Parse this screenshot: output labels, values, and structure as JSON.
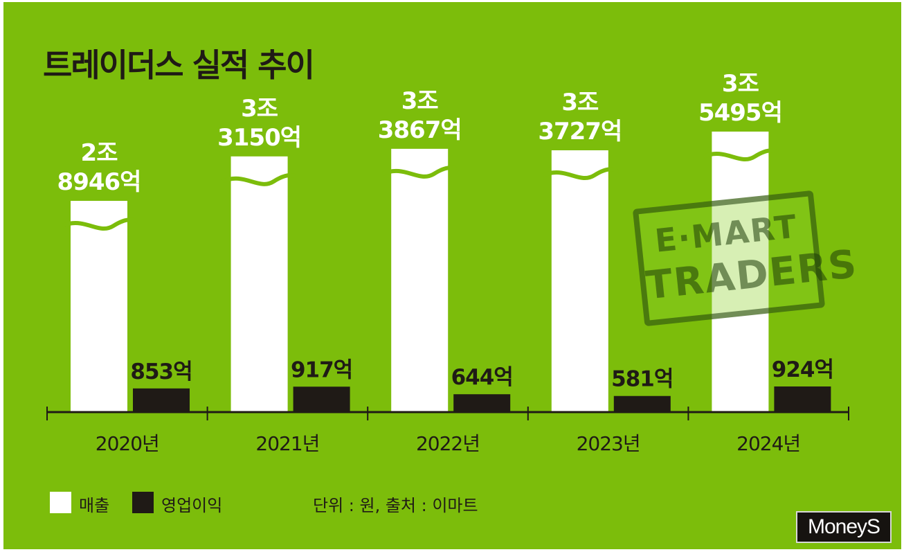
{
  "title": "트레이더스 실적 추이",
  "chart_data": {
    "type": "bar",
    "categories": [
      "2020년",
      "2021년",
      "2022년",
      "2023년",
      "2024년"
    ],
    "series": [
      {
        "name": "매출",
        "values": [
          2894600000000,
          3315000000000,
          3386700000000,
          3372700000000,
          3549500000000
        ],
        "label_lines": [
          [
            "2조",
            "8946억"
          ],
          [
            "3조",
            "3150억"
          ],
          [
            "3조",
            "3867억"
          ],
          [
            "3조",
            "3727억"
          ],
          [
            "3조",
            "5495억"
          ]
        ],
        "color": "#ffffff",
        "axis_break": true
      },
      {
        "name": "영업이익",
        "values": [
          85300000000,
          91700000000,
          64400000000,
          58100000000,
          92400000000
        ],
        "labels": [
          "853억",
          "917억",
          "644억",
          "581억",
          "924억"
        ],
        "color": "#1f1a16"
      }
    ],
    "legend": [
      "매출",
      "영업이익"
    ],
    "legend_position": "bottom-left",
    "unit_note": "단위 : 원, 출처 : 이마트",
    "grid": false,
    "background": "#7cbd0b"
  },
  "watermark": {
    "line1": "E·MART",
    "line2": "TRADERS"
  },
  "logo": {
    "text": "MoneyS"
  },
  "colors": {
    "background": "#7cbd0b",
    "revenue": "#ffffff",
    "operating_profit": "#1f1a16",
    "text": "#1f1a16"
  }
}
